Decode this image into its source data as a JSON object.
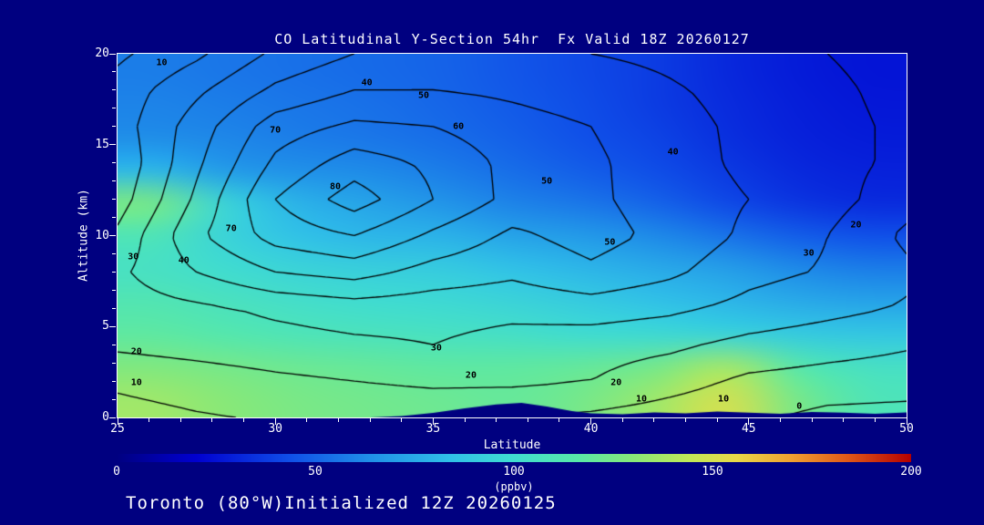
{
  "title": "CO Latitudinal Y-Section 54hr  Fx Valid 18Z 20260127",
  "footer_text": "Toronto (80°W)Initialized 12Z 20260125",
  "colors": {
    "background": "#000080",
    "frame": "#ffffff",
    "text": "#ffffff",
    "contour_line": "#000000",
    "terrain": "#000080"
  },
  "x_axis": {
    "label": "Latitude",
    "min": 25,
    "max": 50,
    "ticks": [
      25,
      30,
      35,
      40,
      45,
      50
    ],
    "minor_step": 1
  },
  "y_axis": {
    "label": "Altitude (km)",
    "min": 0,
    "max": 20,
    "ticks": [
      0,
      5,
      10,
      15,
      20
    ],
    "minor_step": 1
  },
  "colorbar": {
    "label": "(ppbv)",
    "min": 0,
    "max": 200,
    "ticks": [
      0,
      50,
      100,
      150,
      200
    ],
    "stops": [
      {
        "t": 0.0,
        "c": "#000080"
      },
      {
        "t": 0.1,
        "c": "#0000d0"
      },
      {
        "t": 0.22,
        "c": "#1050e8"
      },
      {
        "t": 0.32,
        "c": "#2090e8"
      },
      {
        "t": 0.42,
        "c": "#30c0e8"
      },
      {
        "t": 0.5,
        "c": "#40dcd0"
      },
      {
        "t": 0.58,
        "c": "#58e8a8"
      },
      {
        "t": 0.65,
        "c": "#88e878"
      },
      {
        "t": 0.72,
        "c": "#c0e858"
      },
      {
        "t": 0.78,
        "c": "#e8d848"
      },
      {
        "t": 0.85,
        "c": "#f0a030"
      },
      {
        "t": 0.92,
        "c": "#e05818"
      },
      {
        "t": 1.0,
        "c": "#b40000"
      }
    ]
  },
  "chart_data": {
    "type": "heatmap",
    "quantity": "CO",
    "fill_units": "ppbv",
    "x": [
      25,
      27.5,
      30,
      32.5,
      35,
      37.5,
      40,
      42.5,
      45,
      47.5,
      50
    ],
    "y": [
      20,
      18,
      16,
      14,
      12,
      10,
      8,
      6,
      4,
      2,
      0
    ],
    "fill_range": [
      0,
      200
    ],
    "fill_grid": [
      [
        58,
        56,
        54,
        52,
        50,
        46,
        42,
        38,
        32,
        28,
        26
      ],
      [
        60,
        58,
        56,
        54,
        51,
        47,
        43,
        38,
        33,
        29,
        27
      ],
      [
        63,
        61,
        58,
        56,
        53,
        49,
        44,
        40,
        34,
        30,
        28
      ],
      [
        80,
        68,
        64,
        62,
        58,
        53,
        48,
        43,
        37,
        32,
        30
      ],
      [
        125,
        95,
        78,
        72,
        66,
        60,
        56,
        50,
        42,
        36,
        33
      ],
      [
        110,
        95,
        85,
        80,
        78,
        72,
        68,
        62,
        55,
        48,
        44
      ],
      [
        105,
        100,
        95,
        92,
        90,
        85,
        80,
        75,
        70,
        62,
        58
      ],
      [
        112,
        107,
        103,
        100,
        98,
        95,
        90,
        85,
        80,
        75,
        72
      ],
      [
        118,
        114,
        110,
        108,
        106,
        104,
        100,
        98,
        95,
        90,
        88
      ],
      [
        128,
        125,
        122,
        120,
        118,
        118,
        120,
        125,
        138,
        115,
        105
      ],
      [
        136,
        130,
        126,
        124,
        122,
        120,
        125,
        136,
        150,
        125,
        110
      ]
    ],
    "contour_levels": [
      0,
      10,
      20,
      30,
      40,
      50,
      60,
      70,
      80
    ],
    "contour_grid": [
      [
        8,
        18,
        32,
        40,
        42,
        42,
        40,
        38,
        34,
        30,
        26
      ],
      [
        14,
        28,
        42,
        50,
        50,
        48,
        45,
        41,
        37,
        32,
        27
      ],
      [
        15,
        35,
        55,
        62,
        60,
        54,
        50,
        43,
        38,
        33,
        28
      ],
      [
        12,
        38,
        62,
        75,
        68,
        57,
        52,
        44,
        38,
        33,
        28
      ],
      [
        15,
        42,
        70,
        85,
        70,
        57,
        52,
        45,
        40,
        34,
        24
      ],
      [
        22,
        48,
        64,
        70,
        58,
        48,
        54,
        47,
        38,
        30,
        18
      ],
      [
        28,
        40,
        50,
        54,
        46,
        42,
        48,
        42,
        33,
        29,
        22
      ],
      [
        25,
        28,
        32,
        35,
        34,
        33,
        35,
        32,
        27,
        23,
        19
      ],
      [
        22,
        24,
        26,
        28,
        30,
        26,
        24,
        22,
        17,
        14,
        11
      ],
      [
        12,
        15,
        18,
        20,
        22,
        22,
        20,
        14,
        8,
        6,
        5
      ],
      [
        6,
        9,
        11,
        12,
        12,
        10,
        8,
        5,
        2,
        -3,
        -4
      ]
    ],
    "contour_labels": [
      {
        "v": "10",
        "lat": 26.4,
        "alt": 19.5
      },
      {
        "v": "40",
        "lat": 32.9,
        "alt": 18.4
      },
      {
        "v": "50",
        "lat": 34.7,
        "alt": 17.7
      },
      {
        "v": "70",
        "lat": 30.0,
        "alt": 15.8
      },
      {
        "v": "60",
        "lat": 35.8,
        "alt": 16.0
      },
      {
        "v": "80",
        "lat": 31.9,
        "alt": 12.7
      },
      {
        "v": "70",
        "lat": 28.6,
        "alt": 10.4
      },
      {
        "v": "40",
        "lat": 27.1,
        "alt": 8.6
      },
      {
        "v": "30",
        "lat": 25.5,
        "alt": 8.8
      },
      {
        "v": "20",
        "lat": 25.6,
        "alt": 3.6
      },
      {
        "v": "10",
        "lat": 25.6,
        "alt": 1.9
      },
      {
        "v": "30",
        "lat": 35.1,
        "alt": 3.8
      },
      {
        "v": "50",
        "lat": 38.6,
        "alt": 13.0
      },
      {
        "v": "40",
        "lat": 42.6,
        "alt": 14.6
      },
      {
        "v": "50",
        "lat": 40.6,
        "alt": 9.6
      },
      {
        "v": "30",
        "lat": 46.9,
        "alt": 9.0
      },
      {
        "v": "20",
        "lat": 48.4,
        "alt": 10.6
      },
      {
        "v": "20",
        "lat": 40.8,
        "alt": 1.9
      },
      {
        "v": "10",
        "lat": 41.6,
        "alt": 1.0
      },
      {
        "v": "10",
        "lat": 44.2,
        "alt": 1.0
      },
      {
        "v": "0",
        "lat": 46.6,
        "alt": 0.6
      },
      {
        "v": "20",
        "lat": 36.2,
        "alt": 2.3
      }
    ],
    "terrain_profile": [
      [
        33,
        0
      ],
      [
        34,
        0.08
      ],
      [
        35,
        0.25
      ],
      [
        36,
        0.5
      ],
      [
        37,
        0.72
      ],
      [
        37.8,
        0.8
      ],
      [
        38.6,
        0.6
      ],
      [
        39.4,
        0.35
      ],
      [
        40,
        0.22
      ],
      [
        41,
        0.18
      ],
      [
        42,
        0.28
      ],
      [
        43,
        0.22
      ],
      [
        44,
        0.32
      ],
      [
        45,
        0.26
      ],
      [
        46,
        0.2
      ],
      [
        47,
        0.3
      ],
      [
        48,
        0.26
      ],
      [
        49,
        0.2
      ],
      [
        50,
        0.28
      ]
    ]
  }
}
